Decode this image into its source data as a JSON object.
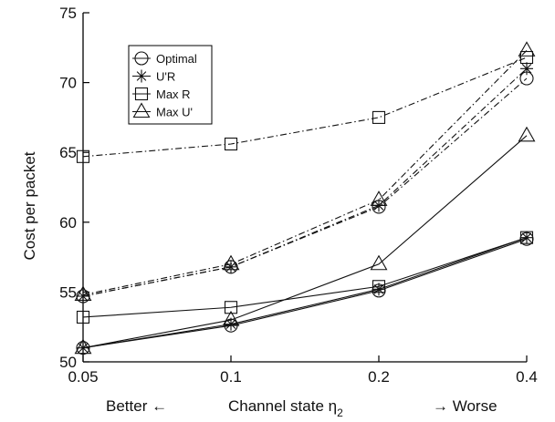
{
  "chart_data": {
    "type": "line",
    "title": "",
    "xlabel_main": "Channel state η",
    "xlabel_sub": "2",
    "xlabel_left": "Better ←",
    "xlabel_right": "→ Worse",
    "ylabel": "Cost per packet",
    "x": [
      0.05,
      0.1,
      0.2,
      0.4
    ],
    "xticks": [
      "0.05",
      "0.1",
      "0.2",
      "0.4"
    ],
    "ylim": [
      50,
      75
    ],
    "yticks": [
      50,
      55,
      60,
      65,
      70,
      75
    ],
    "grid": false,
    "legend_position": "top-left",
    "legend": [
      {
        "label": "Optimal",
        "marker": "circle"
      },
      {
        "label": "U'R",
        "marker": "asterisk"
      },
      {
        "label": "Max R",
        "marker": "square"
      },
      {
        "label": "Max U'",
        "marker": "triangle"
      }
    ],
    "series": [
      {
        "legend_index": 0,
        "line": "solid",
        "values": [
          51.0,
          52.6,
          55.1,
          58.8
        ]
      },
      {
        "legend_index": 1,
        "line": "solid",
        "values": [
          51.0,
          52.7,
          55.2,
          58.9
        ]
      },
      {
        "legend_index": 2,
        "line": "solid",
        "values": [
          53.2,
          53.9,
          55.4,
          58.9
        ]
      },
      {
        "legend_index": 3,
        "line": "solid",
        "values": [
          51.0,
          53.0,
          57.0,
          66.2
        ]
      },
      {
        "legend_index": 0,
        "line": "dashdot",
        "values": [
          54.7,
          56.8,
          61.1,
          70.3
        ]
      },
      {
        "legend_index": 1,
        "line": "dashdot",
        "values": [
          54.7,
          56.8,
          61.2,
          71.0
        ]
      },
      {
        "legend_index": 2,
        "line": "dashdot",
        "values": [
          64.7,
          65.6,
          67.5,
          71.8
        ]
      },
      {
        "legend_index": 3,
        "line": "dashdot",
        "values": [
          54.8,
          57.0,
          61.6,
          72.3
        ]
      }
    ]
  }
}
